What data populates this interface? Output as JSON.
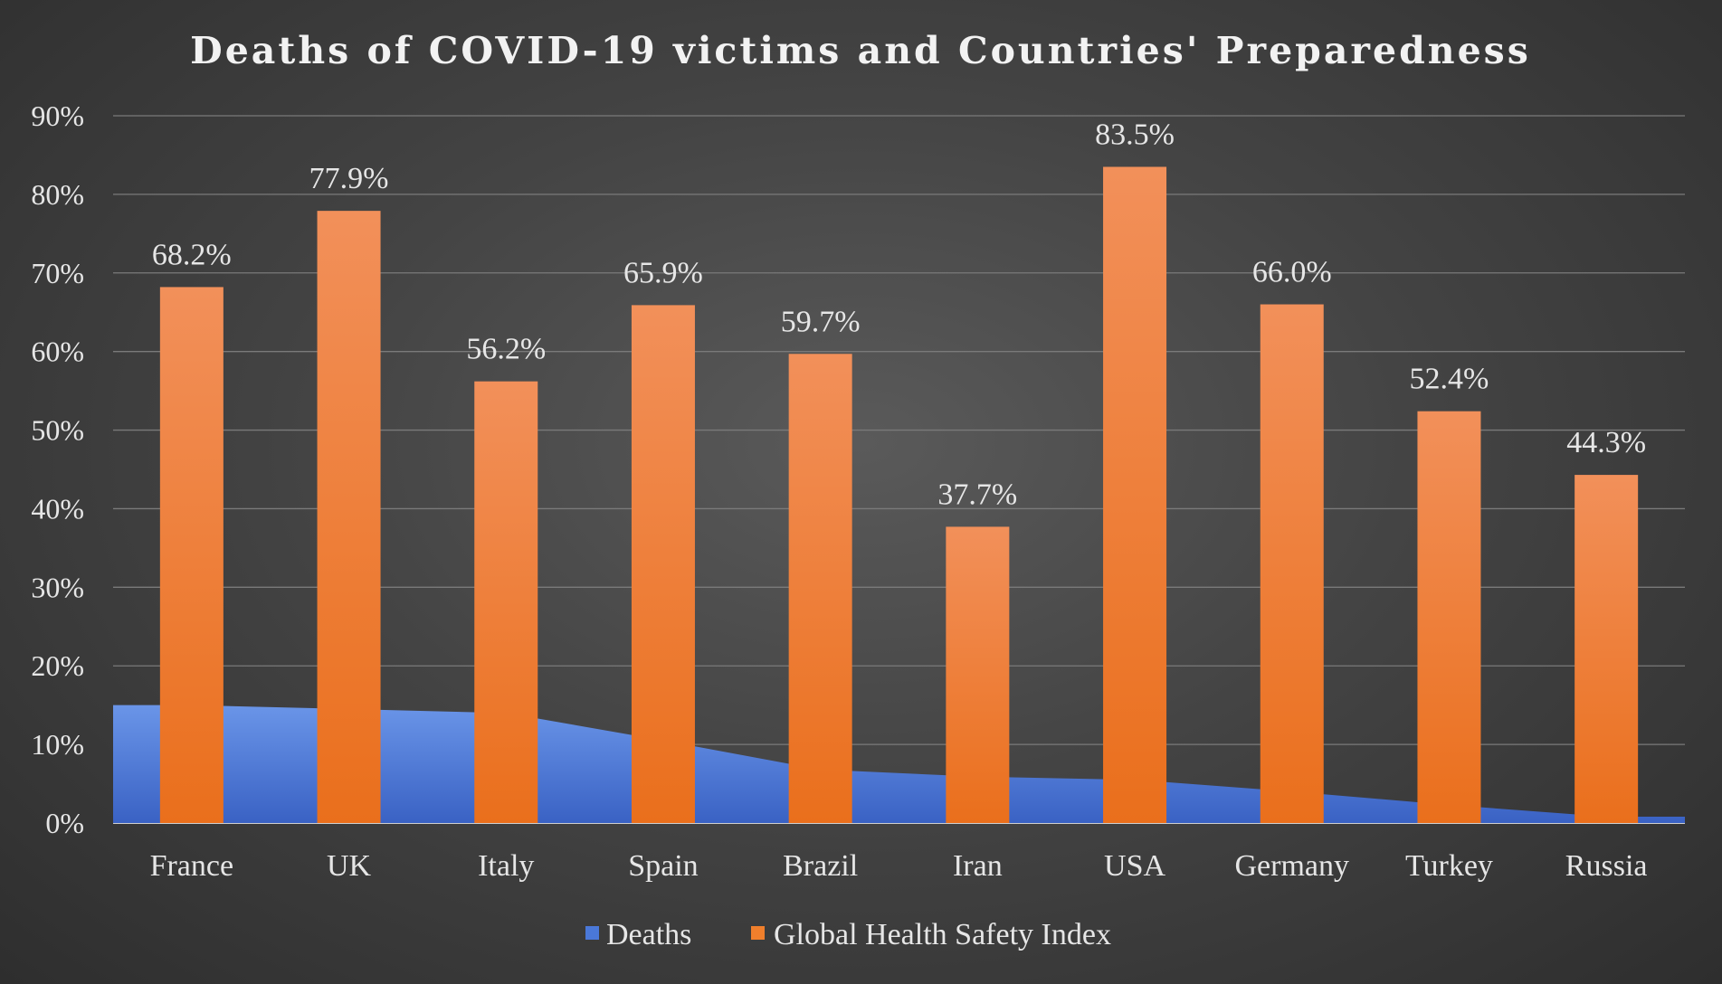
{
  "chart_data": {
    "type": "bar",
    "title": "Deaths of COVID-19 victims and Countries' Preparedness",
    "categories": [
      "France",
      "UK",
      "Italy",
      "Spain",
      "Brazil",
      "Iran",
      "USA",
      "Germany",
      "Turkey",
      "Russia"
    ],
    "series": [
      {
        "name": "Deaths",
        "type": "area",
        "color": "#4a78d8",
        "values": [
          15.0,
          14.5,
          14.0,
          10.5,
          6.8,
          5.9,
          5.5,
          4.0,
          2.3,
          0.8
        ]
      },
      {
        "name": "Global Health Safety Index",
        "type": "bar",
        "color": "#f07f2c",
        "values": [
          68.2,
          77.9,
          56.2,
          65.9,
          59.7,
          37.7,
          83.5,
          66.0,
          52.4,
          44.3
        ],
        "data_labels": [
          "68.2%",
          "77.9%",
          "56.2%",
          "65.9%",
          "59.7%",
          "37.7%",
          "83.5%",
          "66.0%",
          "52.4%",
          "44.3%"
        ]
      }
    ],
    "ylim": [
      0,
      90
    ],
    "yticks": [
      0,
      10,
      20,
      30,
      40,
      50,
      60,
      70,
      80,
      90
    ],
    "ytick_labels": [
      "0%",
      "10%",
      "20%",
      "30%",
      "40%",
      "50%",
      "60%",
      "70%",
      "80%",
      "90%"
    ],
    "xlabel": "",
    "ylabel": "",
    "grid": true,
    "legend_position": "bottom",
    "legend": [
      "Deaths",
      "Global Health Safety Index"
    ]
  }
}
